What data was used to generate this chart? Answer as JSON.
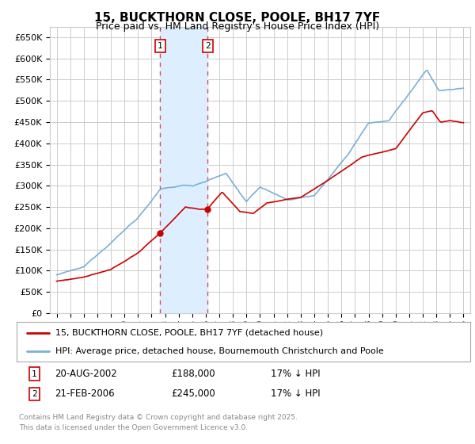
{
  "title": "15, BUCKTHORN CLOSE, POOLE, BH17 7YF",
  "subtitle": "Price paid vs. HM Land Registry's House Price Index (HPI)",
  "ylim": [
    0,
    675000
  ],
  "xlim_start": 1994.5,
  "xlim_end": 2025.5,
  "transaction1": {
    "label": "1",
    "date": "20-AUG-2002",
    "price": 188000,
    "note": "17% ↓ HPI",
    "x": 2002.64
  },
  "transaction2": {
    "label": "2",
    "date": "21-FEB-2006",
    "price": 245000,
    "note": "17% ↓ HPI",
    "x": 2006.13
  },
  "legend_line1": "15, BUCKTHORN CLOSE, POOLE, BH17 7YF (detached house)",
  "legend_line2": "HPI: Average price, detached house, Bournemouth Christchurch and Poole",
  "footer": "Contains HM Land Registry data © Crown copyright and database right 2025.\nThis data is licensed under the Open Government Licence v3.0.",
  "red_color": "#cc0000",
  "blue_color": "#7ab0d4",
  "shaded_color": "#ddeeff",
  "grid_color": "#cccccc",
  "background_color": "#ffffff",
  "tick_vals": [
    0,
    50000,
    100000,
    150000,
    200000,
    250000,
    300000,
    350000,
    400000,
    450000,
    500000,
    550000,
    600000,
    650000
  ],
  "tick_labels": [
    "£0",
    "£50K",
    "£100K",
    "£150K",
    "£200K",
    "£250K",
    "£300K",
    "£350K",
    "£400K",
    "£450K",
    "£500K",
    "£550K",
    "£600K",
    "£650K"
  ]
}
